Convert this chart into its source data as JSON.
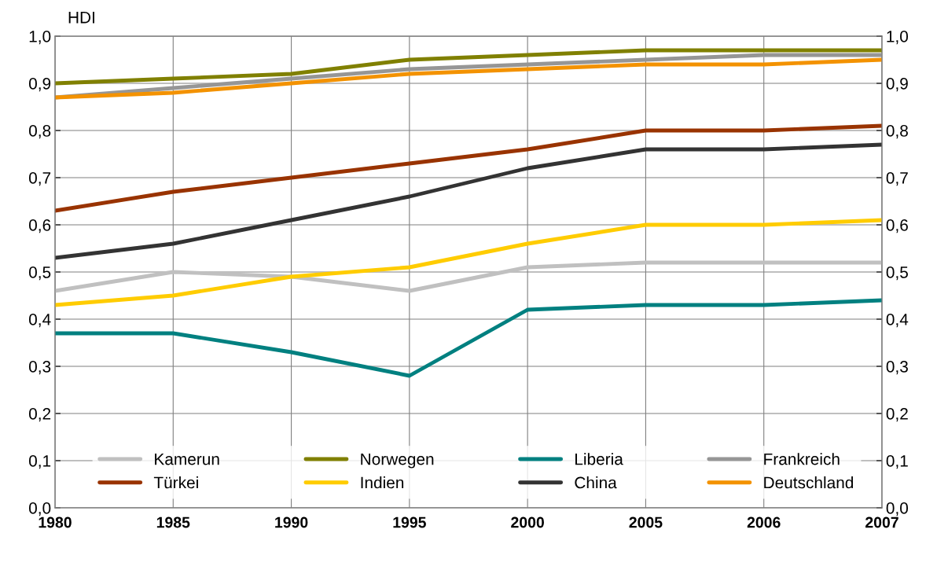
{
  "chart_data": {
    "type": "line",
    "ylabel": "HDI",
    "categories": [
      "1980",
      "1985",
      "1990",
      "1995",
      "2000",
      "2005",
      "2006",
      "2007"
    ],
    "series": [
      {
        "name": "Kamerun",
        "color": "#c0c0c0",
        "values": [
          0.46,
          0.5,
          0.49,
          0.46,
          0.51,
          0.52,
          0.52,
          0.52
        ]
      },
      {
        "name": "Norwegen",
        "color": "#808000",
        "values": [
          0.9,
          0.91,
          0.92,
          0.95,
          0.96,
          0.97,
          0.97,
          0.97
        ]
      },
      {
        "name": "Liberia",
        "color": "#008080",
        "values": [
          0.37,
          0.37,
          0.33,
          0.28,
          0.42,
          0.43,
          0.43,
          0.44
        ]
      },
      {
        "name": "Frankreich",
        "color": "#969696",
        "values": [
          0.87,
          0.89,
          0.91,
          0.93,
          0.94,
          0.95,
          0.96,
          0.96
        ]
      },
      {
        "name": "Türkei",
        "color": "#993300",
        "values": [
          0.63,
          0.67,
          0.7,
          0.73,
          0.76,
          0.8,
          0.8,
          0.81
        ]
      },
      {
        "name": "Indien",
        "color": "#ffcc00",
        "values": [
          0.43,
          0.45,
          0.49,
          0.51,
          0.56,
          0.6,
          0.6,
          0.61
        ]
      },
      {
        "name": "China",
        "color": "#333333",
        "values": [
          0.53,
          0.56,
          0.61,
          0.66,
          0.72,
          0.76,
          0.76,
          0.77
        ]
      },
      {
        "name": "Deutschland",
        "color": "#f39200",
        "values": [
          0.87,
          0.88,
          0.9,
          0.92,
          0.93,
          0.94,
          0.94,
          0.95
        ]
      }
    ],
    "ylim": [
      0,
      1
    ],
    "yticks": [
      {
        "value": 0,
        "label": "0,0"
      },
      {
        "value": 0.1,
        "label": "0,1"
      },
      {
        "value": 0.2,
        "label": "0,2"
      },
      {
        "value": 0.3,
        "label": "0,3"
      },
      {
        "value": 0.4,
        "label": "0,4"
      },
      {
        "value": 0.5,
        "label": "0,5"
      },
      {
        "value": 0.6,
        "label": "0,6"
      },
      {
        "value": 0.7,
        "label": "0,7"
      },
      {
        "value": 0.8,
        "label": "0,8"
      },
      {
        "value": 0.9,
        "label": "0,9"
      },
      {
        "value": 1,
        "label": "1,0"
      }
    ],
    "y2lim": [
      0,
      1
    ],
    "y2ticks": [
      {
        "value": 0,
        "label": "0,0"
      },
      {
        "value": 0.1,
        "label": "0,1"
      },
      {
        "value": 0.2,
        "label": "0,2"
      },
      {
        "value": 0.3,
        "label": "0,3"
      },
      {
        "value": 0.4,
        "label": "0,4"
      },
      {
        "value": 0.5,
        "label": "0,5"
      },
      {
        "value": 0.6,
        "label": "0,6"
      },
      {
        "value": 0.7,
        "label": "0,7"
      },
      {
        "value": 0.8,
        "label": "0,8"
      },
      {
        "value": 0.9,
        "label": "0,9"
      },
      {
        "value": 1,
        "label": "1,0"
      }
    ],
    "grid": true,
    "legend": "bottom",
    "marker": "none",
    "line_style": "solid"
  }
}
